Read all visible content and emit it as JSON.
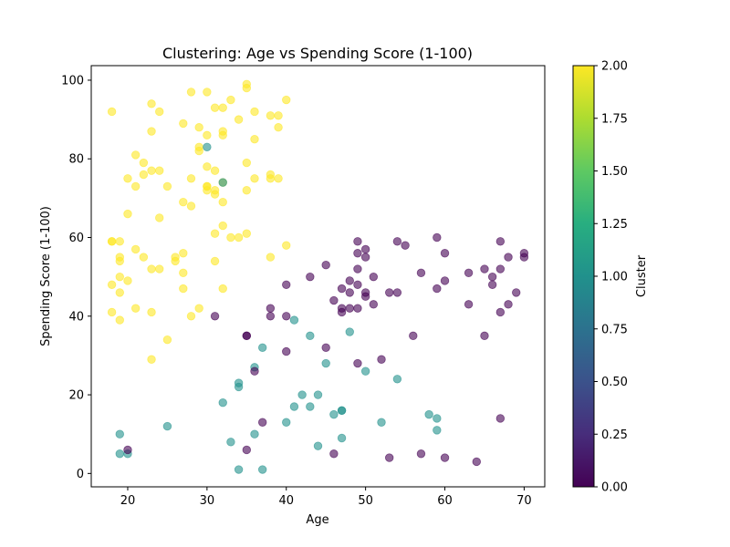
{
  "chart_data": {
    "type": "scatter",
    "title": "Clustering: Age vs Spending Score (1-100)",
    "xlabel": "Age",
    "ylabel": "Spending Score (1-100)",
    "xlim": [
      15.4,
      72.6
    ],
    "ylim": [
      -3.4,
      103.7
    ],
    "x_ticks": [
      20,
      30,
      40,
      50,
      60,
      70
    ],
    "y_ticks": [
      0,
      20,
      40,
      60,
      80,
      100
    ],
    "grid": false,
    "point_alpha": 0.6,
    "colorbar": {
      "label": "Cluster",
      "range": [
        0,
        2
      ],
      "ticks": [
        "0.00",
        "0.25",
        "0.50",
        "0.75",
        "1.00",
        "1.25",
        "1.50",
        "1.75",
        "2.00"
      ],
      "colormap": "viridis"
    },
    "cluster_colors": {
      "0": "#440154",
      "1": "#21918c",
      "2": "#fde725"
    },
    "series": [
      {
        "cluster": 2,
        "x": [
          18,
          18,
          18,
          18,
          18,
          19,
          19,
          19,
          19,
          19,
          19,
          20,
          20,
          20,
          21,
          21,
          21,
          21,
          22,
          22,
          22,
          23,
          23,
          23,
          23,
          23,
          23,
          24,
          24,
          24,
          24,
          25,
          25,
          26,
          26,
          27,
          27,
          27,
          27,
          27,
          28,
          28,
          28,
          28,
          29,
          29,
          29,
          29,
          30,
          30,
          30,
          30,
          30,
          30,
          31,
          31,
          31,
          31,
          31,
          31,
          32,
          32,
          32,
          32,
          32,
          32,
          32,
          33,
          33,
          34,
          34,
          35,
          35,
          35,
          35,
          35,
          36,
          36,
          36,
          38,
          38,
          38,
          38,
          39,
          39,
          39,
          40,
          40
        ],
        "y": [
          92,
          59,
          48,
          41,
          59,
          54,
          55,
          50,
          46,
          39,
          59,
          75,
          66,
          49,
          81,
          73,
          57,
          42,
          79,
          76,
          55,
          94,
          87,
          77,
          52,
          41,
          29,
          92,
          77,
          65,
          52,
          73,
          34,
          55,
          54,
          89,
          69,
          56,
          51,
          47,
          97,
          75,
          68,
          40,
          88,
          82,
          83,
          42,
          97,
          86,
          78,
          73,
          72,
          73,
          93,
          77,
          72,
          71,
          61,
          54,
          93,
          86,
          74,
          87,
          69,
          63,
          47,
          95,
          60,
          90,
          60,
          99,
          98,
          79,
          72,
          61,
          92,
          85,
          75,
          91,
          76,
          75,
          55,
          91,
          88,
          75,
          95,
          58
        ]
      },
      {
        "cluster": 1,
        "x": [
          19,
          19,
          20,
          25,
          30,
          32,
          32,
          33,
          34,
          34,
          34,
          36,
          36,
          37,
          37,
          40,
          41,
          41,
          42,
          43,
          43,
          44,
          44,
          45,
          46,
          47,
          47,
          47,
          48,
          50,
          52,
          54,
          58,
          59,
          59
        ],
        "y": [
          10,
          5,
          5,
          12,
          83,
          74,
          18,
          8,
          23,
          22,
          1,
          27,
          10,
          32,
          1,
          13,
          39,
          17,
          20,
          35,
          17,
          20,
          7,
          28,
          15,
          16,
          16,
          9,
          36,
          26,
          13,
          24,
          15,
          14,
          11
        ]
      },
      {
        "cluster": 0,
        "x": [
          20,
          31,
          35,
          35,
          36,
          37,
          38,
          38,
          40,
          40,
          40,
          43,
          45,
          45,
          46,
          47,
          47,
          47,
          48,
          48,
          48,
          49,
          49,
          49,
          49,
          49,
          49,
          50,
          50,
          50,
          50,
          51,
          51,
          52,
          53,
          54,
          54,
          55,
          56,
          57,
          57,
          59,
          59,
          60,
          60,
          60,
          63,
          63,
          65,
          65,
          66,
          66,
          67,
          67,
          67,
          67,
          68,
          68,
          69,
          70,
          70,
          35,
          46,
          53,
          64
        ],
        "y": [
          6,
          40,
          35,
          6,
          26,
          13,
          42,
          40,
          48,
          40,
          31,
          50,
          53,
          32,
          44,
          47,
          42,
          41,
          49,
          46,
          42,
          59,
          56,
          52,
          48,
          42,
          28,
          57,
          55,
          46,
          45,
          50,
          43,
          29,
          46,
          59,
          46,
          58,
          35,
          51,
          5,
          60,
          47,
          56,
          49,
          4,
          51,
          43,
          52,
          35,
          50,
          48,
          59,
          52,
          41,
          14,
          55,
          43,
          46,
          56,
          55,
          35,
          5,
          4,
          3
        ]
      }
    ]
  }
}
